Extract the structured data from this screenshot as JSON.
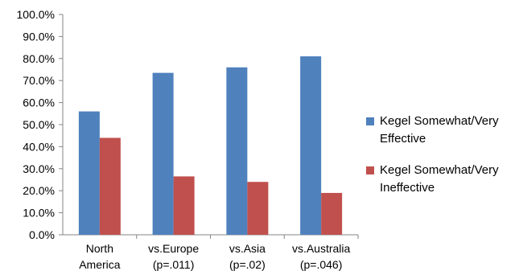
{
  "chart_data": {
    "type": "bar",
    "categories": [
      "North\nAmerica",
      "vs.Europe\n(p=.011)",
      "vs.Asia\n(p=.02)",
      "vs.Australia\n(p=.046)"
    ],
    "series": [
      {
        "name": "Kegel Somewhat/Very\nEffective",
        "color": "#4f81bd",
        "values": [
          56.0,
          73.5,
          76.0,
          81.0
        ]
      },
      {
        "name": "Kegel Somewhat/Very\nIneffective",
        "color": "#c0504d",
        "values": [
          44.0,
          26.5,
          24.0,
          19.0
        ]
      }
    ],
    "yticks": [
      "0.0%",
      "10.0%",
      "20.0%",
      "30.0%",
      "40.0%",
      "50.0%",
      "60.0%",
      "70.0%",
      "80.0%",
      "90.0%",
      "100.0%"
    ],
    "ylim": [
      0,
      100
    ],
    "grid": false,
    "legend_position": "right"
  }
}
